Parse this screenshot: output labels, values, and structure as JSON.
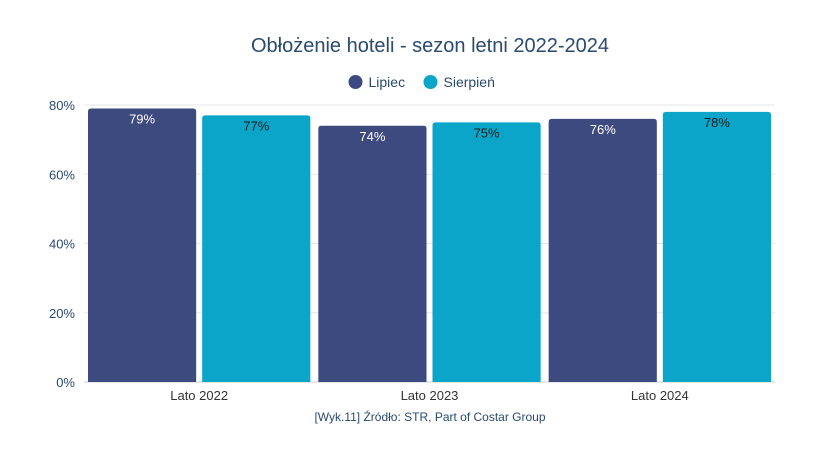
{
  "chart_data": {
    "type": "bar",
    "title": "Obłożenie hoteli - sezon letni 2022-2024",
    "categories": [
      "Lato 2022",
      "Lato 2023",
      "Lato 2024"
    ],
    "series": [
      {
        "name": "Lipiec",
        "values": [
          79,
          74,
          76
        ],
        "labels": [
          "79%",
          "74%",
          "76%"
        ],
        "color": "#3d4a80",
        "label_color": "#ffffff"
      },
      {
        "name": "Sierpień",
        "values": [
          77,
          75,
          78
        ],
        "labels": [
          "77%",
          "75%",
          "78%"
        ],
        "color": "#0aa5c8",
        "label_color": "#1a1a1a"
      }
    ],
    "yticks": [
      {
        "value": 0,
        "label": "0%"
      },
      {
        "value": 20,
        "label": "20%"
      },
      {
        "value": 40,
        "label": "40%"
      },
      {
        "value": 60,
        "label": "60%"
      },
      {
        "value": 80,
        "label": "80%"
      }
    ],
    "ylim": [
      0,
      80
    ],
    "xlabel": "",
    "ylabel": "",
    "grid": true,
    "legend": "top-center"
  },
  "source": "[Wyk.11] Źródło: STR, Part of Costar Group"
}
